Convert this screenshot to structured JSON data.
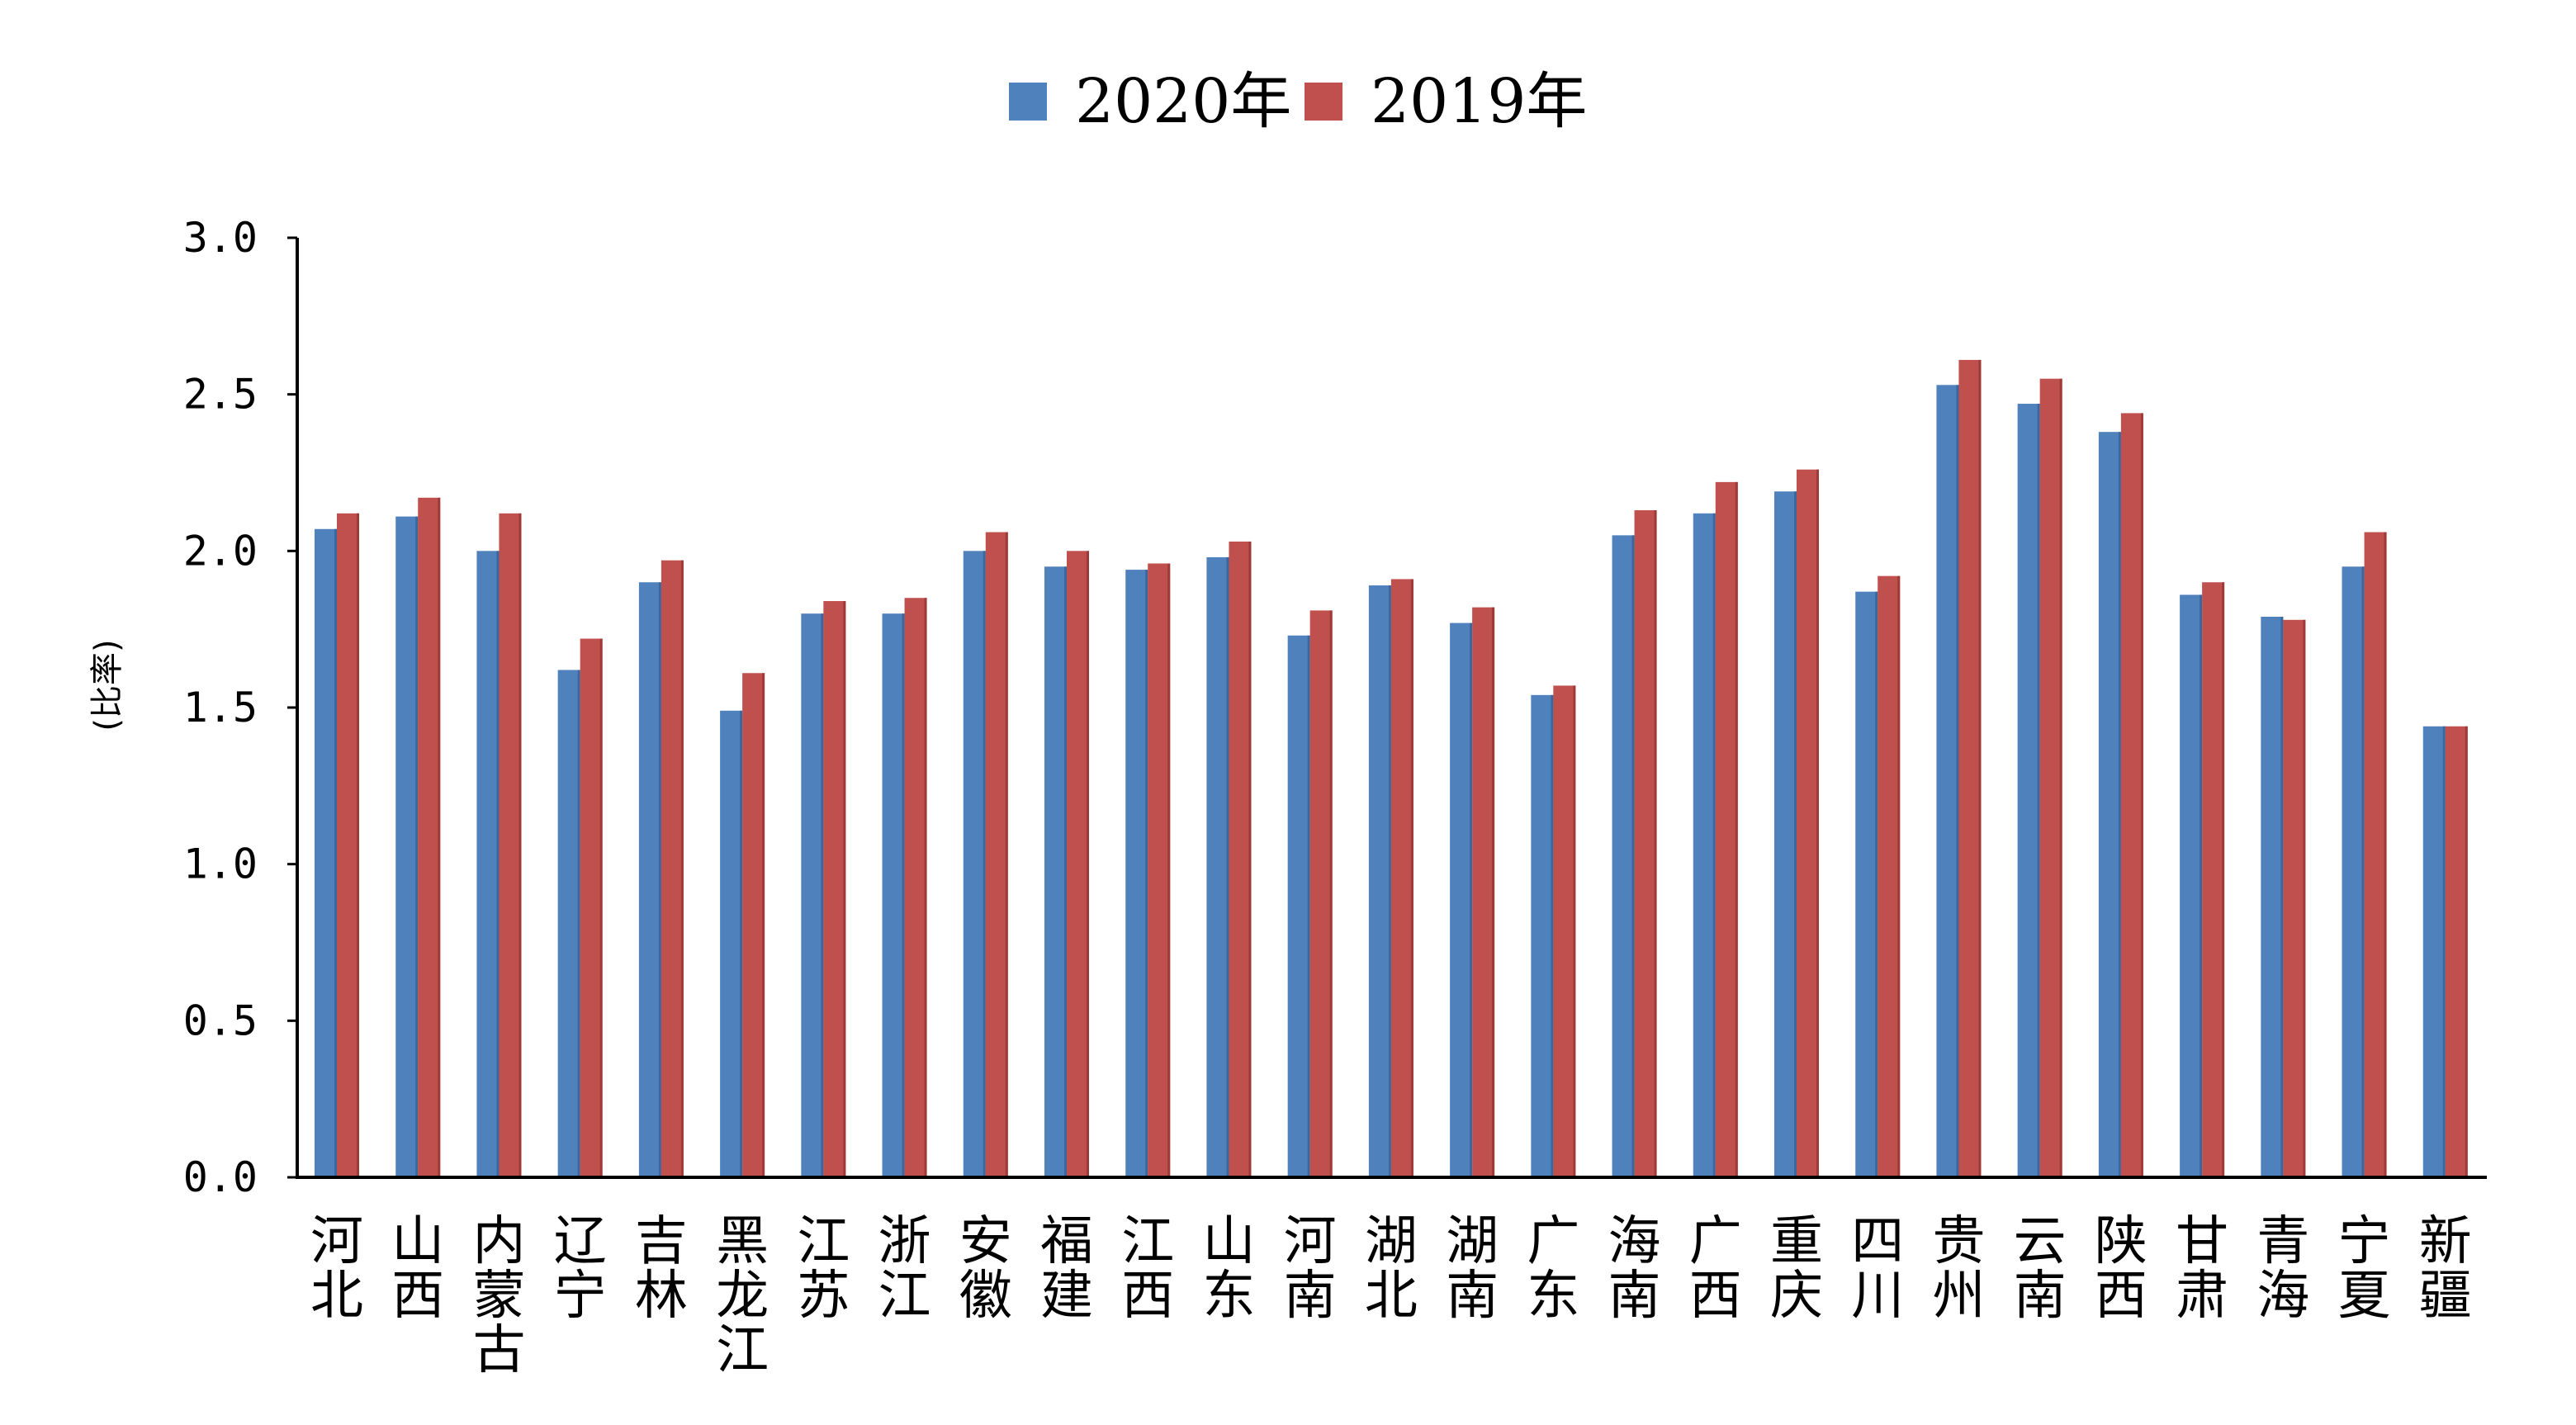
{
  "chart_data": {
    "type": "bar",
    "title": "",
    "xlabel": "",
    "ylabel": "(比率)",
    "ylim": [
      0,
      3.0
    ],
    "yticks": [
      "0.0",
      "0.5",
      "1.0",
      "1.5",
      "2.0",
      "2.5",
      "3.0"
    ],
    "grid": false,
    "legend_position": "top-center",
    "categories": [
      "河北",
      "山西",
      "内蒙古",
      "辽宁",
      "吉林",
      "黑龙江",
      "江苏",
      "浙江",
      "安徽",
      "福建",
      "江西",
      "山东",
      "河南",
      "湖北",
      "湖南",
      "广东",
      "海南",
      "广西",
      "重庆",
      "四川",
      "贵州",
      "云南",
      "陕西",
      "甘肃",
      "青海",
      "宁夏",
      "新疆"
    ],
    "series": [
      {
        "name": "2020年",
        "color": "#4F81BD",
        "values": [
          2.07,
          2.11,
          2.0,
          1.62,
          1.9,
          1.49,
          1.8,
          1.8,
          2.0,
          1.95,
          1.94,
          1.98,
          1.73,
          1.89,
          1.77,
          1.54,
          2.05,
          2.12,
          2.19,
          1.87,
          2.53,
          2.47,
          2.38,
          1.86,
          1.79,
          1.95,
          1.44
        ]
      },
      {
        "name": "2019年",
        "color": "#C0504D",
        "values": [
          2.12,
          2.17,
          2.12,
          1.72,
          1.97,
          1.61,
          1.84,
          1.85,
          2.06,
          2.0,
          1.96,
          2.03,
          1.81,
          1.91,
          1.82,
          1.57,
          2.13,
          2.22,
          2.26,
          1.92,
          2.61,
          2.55,
          2.44,
          1.9,
          1.78,
          2.06,
          1.44
        ]
      }
    ]
  }
}
